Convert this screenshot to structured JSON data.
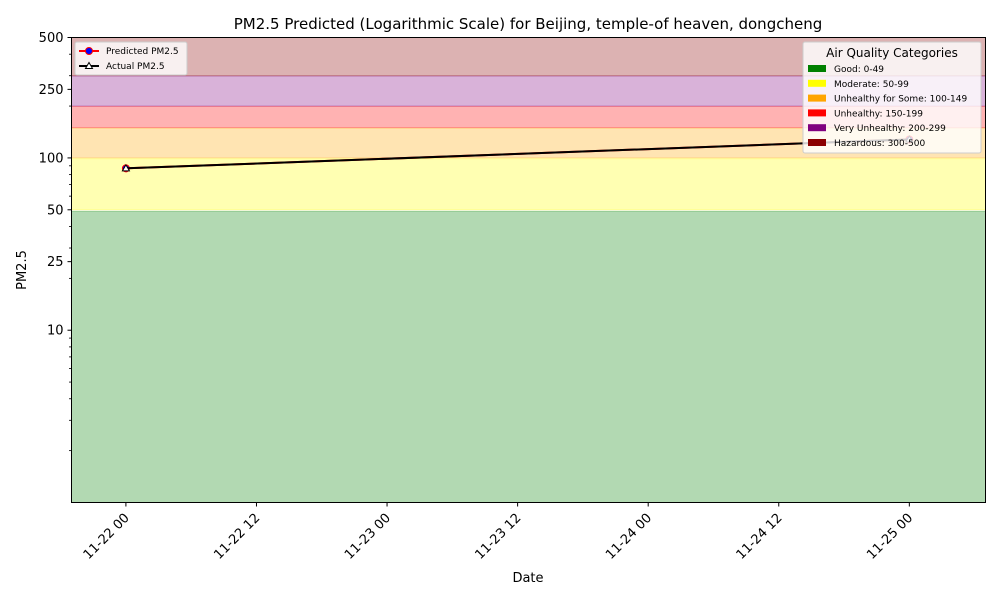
{
  "chart_data": {
    "type": "line",
    "title": "PM2.5 Predicted (Logarithmic Scale) for Beijing, temple-of heaven, dongcheng",
    "xlabel": "Date",
    "ylabel": "PM2.5",
    "yscale": "log",
    "ylim": [
      1,
      500
    ],
    "xlim": [
      "2024-11-21T19:00",
      "2024-11-25T07:00"
    ],
    "y_ticks": [
      {
        "value": 10,
        "label": "10"
      },
      {
        "value": 25,
        "label": "25"
      },
      {
        "value": 50,
        "label": "50"
      },
      {
        "value": 100,
        "label": "100"
      },
      {
        "value": 250,
        "label": "250"
      },
      {
        "value": 500,
        "label": "500"
      }
    ],
    "x_ticks": [
      {
        "value": "2024-11-22T00:00",
        "label": "11-22 00"
      },
      {
        "value": "2024-11-22T12:00",
        "label": "11-22 12"
      },
      {
        "value": "2024-11-23T00:00",
        "label": "11-23 00"
      },
      {
        "value": "2024-11-23T12:00",
        "label": "11-23 12"
      },
      {
        "value": "2024-11-24T00:00",
        "label": "11-24 00"
      },
      {
        "value": "2024-11-24T12:00",
        "label": "11-24 12"
      },
      {
        "value": "2024-11-25T00:00",
        "label": "11-25 00"
      }
    ],
    "series": [
      {
        "name": "Predicted PM2.5",
        "color": "#ff0000",
        "marker": "circle",
        "marker_color": "#0000ff",
        "x": [
          "2024-11-22T00:00",
          "2024-11-25T00:00"
        ],
        "y": [
          87,
          128
        ]
      },
      {
        "name": "Actual PM2.5",
        "color": "#000000",
        "marker": "triangle",
        "x": [
          "2024-11-22T00:00",
          "2024-11-25T00:00"
        ],
        "y": [
          87,
          128
        ]
      }
    ],
    "bands": [
      {
        "label": "Good: 0-49",
        "from": 0,
        "to": 49,
        "color": "#008000"
      },
      {
        "label": "Moderate: 50-99",
        "from": 50,
        "to": 99,
        "color": "#ffff00"
      },
      {
        "label": "Unhealthy for Some: 100-149",
        "from": 100,
        "to": 149,
        "color": "#ffa500"
      },
      {
        "label": "Unhealthy: 150-199",
        "from": 150,
        "to": 199,
        "color": "#ff0000"
      },
      {
        "label": "Very Unhealthy: 200-299",
        "from": 200,
        "to": 299,
        "color": "#800080"
      },
      {
        "label": "Hazardous: 300-500",
        "from": 300,
        "to": 500,
        "color": "#8b0000"
      }
    ],
    "band_legend_title": "Air Quality Categories",
    "legend_series_position": "top-left",
    "legend_bands_position": "top-right",
    "grid": false
  }
}
